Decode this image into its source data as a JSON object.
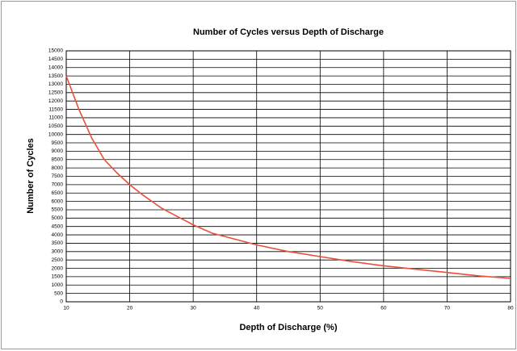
{
  "chart_data": {
    "type": "line",
    "title": "Number of Cycles versus Depth of Discharge",
    "x_label": "Depth of Discharge (%)",
    "y_label": "Number of Cycles",
    "series": [
      {
        "name": "Cycles",
        "color": "#e8503a",
        "x": [
          10,
          12,
          14,
          16,
          18,
          20,
          22,
          25,
          28,
          30,
          33,
          35,
          40,
          45,
          50,
          55,
          60,
          65,
          70,
          75,
          80
        ],
        "values": [
          13500,
          11500,
          9800,
          8500,
          7700,
          7000,
          6400,
          5600,
          5000,
          4600,
          4100,
          3900,
          3400,
          3000,
          2700,
          2400,
          2150,
          1950,
          1750,
          1550,
          1400
        ]
      }
    ],
    "xlim": [
      10,
      80
    ],
    "xticks": [
      10,
      20,
      30,
      40,
      50,
      60,
      70,
      80
    ],
    "ylim": [
      0,
      15000
    ],
    "yticks": [
      0,
      500,
      1000,
      1500,
      2000,
      2500,
      3000,
      3500,
      4000,
      4500,
      5000,
      5500,
      6000,
      6500,
      7000,
      7500,
      8000,
      8500,
      9000,
      9500,
      10000,
      10500,
      11000,
      11500,
      12000,
      12500,
      13000,
      13500,
      14000,
      14500,
      15000
    ],
    "grid": true
  }
}
